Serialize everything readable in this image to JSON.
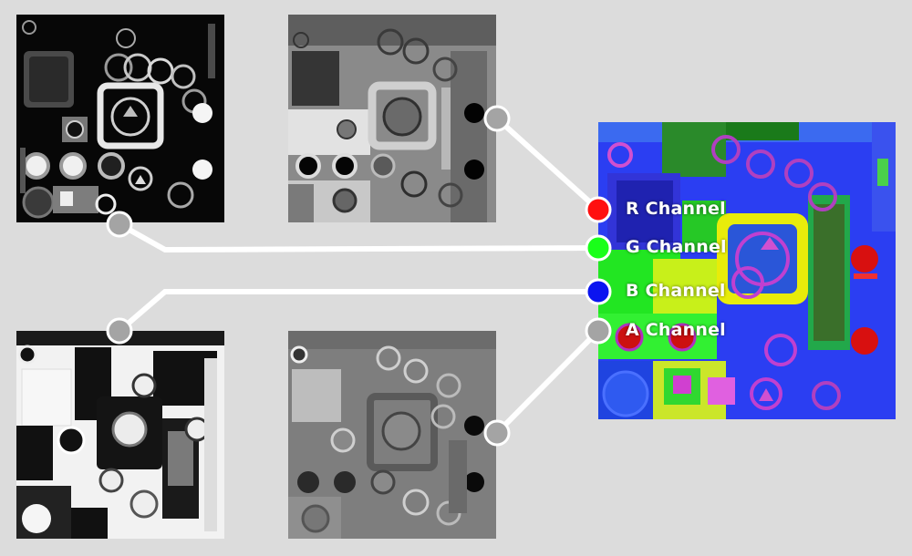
{
  "channels": [
    {
      "key": "r",
      "label": "R Channel",
      "color": "#ff1010"
    },
    {
      "key": "g",
      "label": "G Channel",
      "color": "#19ff19"
    },
    {
      "key": "b",
      "label": "B Channel",
      "color": "#0b14f0"
    },
    {
      "key": "a",
      "label": "A Channel",
      "color": "#a4a4a4"
    }
  ],
  "connector_color": "#a4a4a4",
  "wire_color": "#ffffff"
}
